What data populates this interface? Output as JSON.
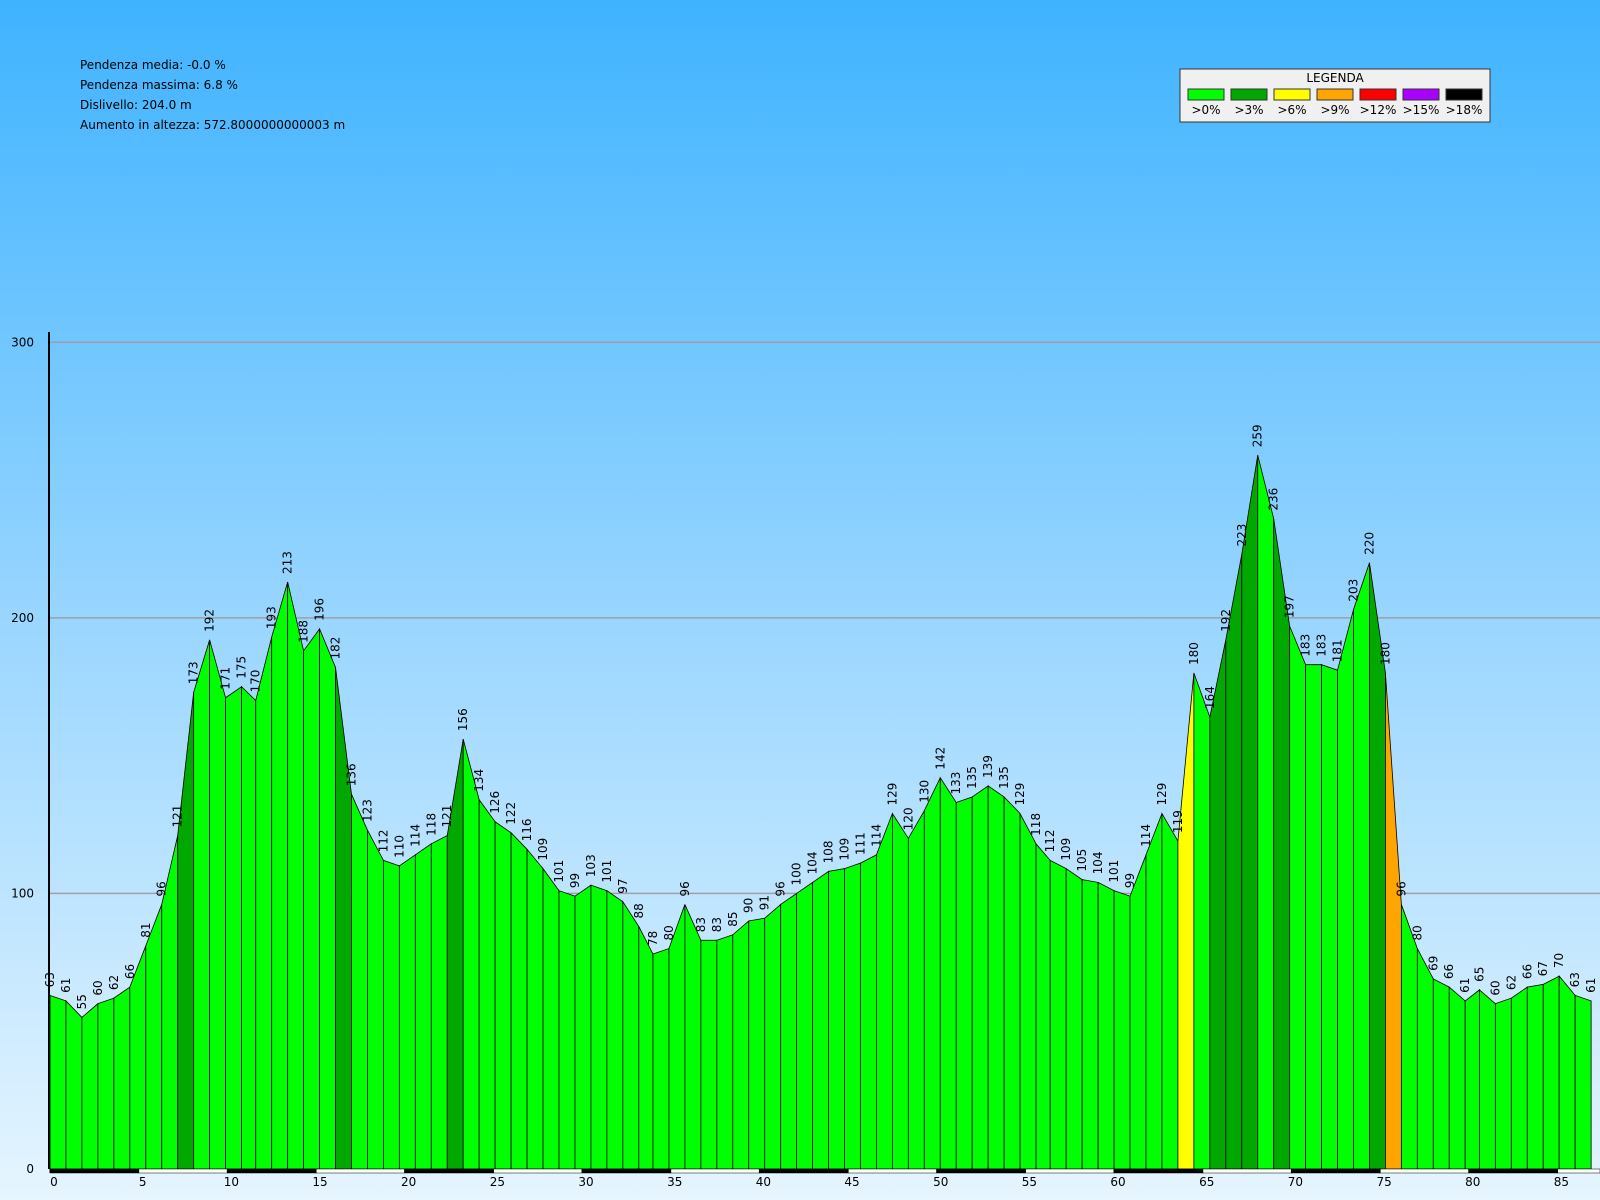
{
  "stats": [
    "Pendenza media: -0.0 %",
    "Pendenza massima: 6.8 %",
    "Dislivello: 204.0 m",
    "Aumento in altezza: 572.8000000000003 m"
  ],
  "chart_data": {
    "type": "area",
    "legend": {
      "title": "LEGENDA",
      "items": [
        {
          "value": 0,
          "label": ">0%",
          "color": "#00ff00"
        },
        {
          "value": 3,
          "label": ">3%",
          "color": "#00a800"
        },
        {
          "value": 6,
          "label": ">6%",
          "color": "#ffff00"
        },
        {
          "value": 9,
          "label": ">9%",
          "color": "#ffa500"
        },
        {
          "value": 12,
          "label": ">12%",
          "color": "#ff0000"
        },
        {
          "value": 15,
          "label": ">15%",
          "color": "#aa00ff"
        },
        {
          "value": 18,
          "label": ">18%",
          "color": "#000000"
        }
      ]
    },
    "x": [
      0,
      0.9,
      1.8,
      2.7,
      3.6,
      4.5,
      5.4,
      6.3,
      7.2,
      8.1,
      9.0,
      9.9,
      10.8,
      11.6,
      12.5,
      13.4,
      14.3,
      15.2,
      16.1,
      17.0,
      17.9,
      18.8,
      19.7,
      20.6,
      21.5,
      22.4,
      23.3,
      24.2,
      25.1,
      26.0,
      26.9,
      27.8,
      28.7,
      29.6,
      30.5,
      31.4,
      32.3,
      33.2,
      34.0,
      34.9,
      35.8,
      36.7,
      37.6,
      38.5,
      39.4,
      40.3,
      41.2,
      42.1,
      43.0,
      43.9,
      44.8,
      45.7,
      46.6,
      47.5,
      48.4,
      49.3,
      50.2,
      51.1,
      52.0,
      52.9,
      53.8,
      54.7,
      55.6,
      56.4,
      57.3,
      58.2,
      59.1,
      60.0,
      60.9,
      61.8,
      62.7,
      63.6,
      64.5,
      65.4,
      66.3,
      67.2,
      68.1,
      69.0,
      69.9,
      70.8,
      71.7,
      72.6,
      73.5,
      74.4,
      75.3,
      76.2,
      77.1,
      78.0,
      78.9,
      79.8,
      80.6,
      81.5,
      82.4,
      83.3,
      84.2,
      85.1,
      86.0,
      86.9
    ],
    "values": [
      63,
      61,
      55,
      60,
      62,
      66,
      81,
      96,
      121,
      173,
      192,
      171,
      175,
      170,
      193,
      213,
      188,
      196,
      182,
      136,
      123,
      112,
      110,
      114,
      118,
      121,
      156,
      134,
      126,
      122,
      116,
      109,
      101,
      99,
      103,
      101,
      97,
      88,
      78,
      80,
      96,
      83,
      83,
      85,
      90,
      91,
      96,
      100,
      104,
      108,
      109,
      111,
      114,
      129,
      120,
      130,
      142,
      133,
      135,
      139,
      135,
      129,
      118,
      112,
      109,
      105,
      104,
      101,
      99,
      114,
      129,
      119,
      180,
      164,
      192,
      223,
      259,
      236,
      197,
      183,
      183,
      181,
      203,
      220,
      180,
      96,
      80,
      69,
      66,
      61,
      65,
      60,
      62,
      66,
      67,
      70,
      63,
      61
    ],
    "xlim": [
      0,
      87.4
    ],
    "ylim": [
      0,
      303
    ],
    "xticks": [
      0,
      5,
      10,
      15,
      20,
      25,
      30,
      35,
      40,
      45,
      50,
      55,
      60,
      65,
      70,
      75,
      80,
      85
    ],
    "yticks": [
      0,
      100,
      200,
      300
    ],
    "grid": true,
    "grid_color": "#a0a0a0"
  }
}
